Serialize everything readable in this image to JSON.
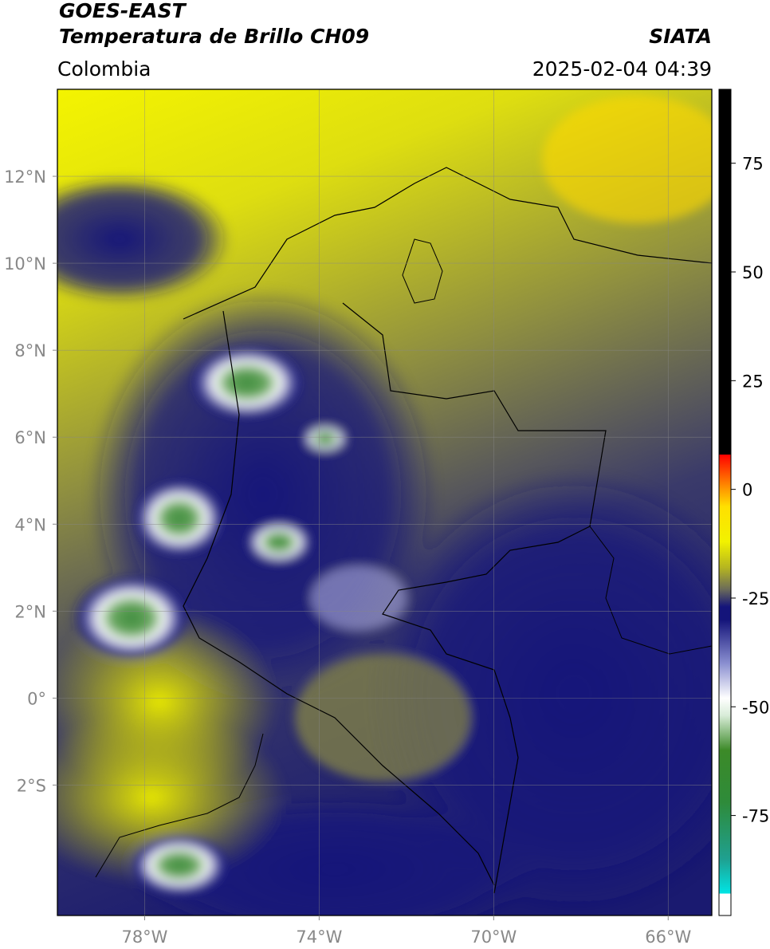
{
  "header": {
    "title": "GOES-EAST",
    "subtitle": "Temperatura de Brillo CH09",
    "source": "SIATA",
    "region": "Colombia",
    "datetime": "2025-02-04 04:39"
  },
  "map": {
    "xlim": [
      -80,
      -65
    ],
    "ylim": [
      -5,
      14
    ],
    "xticks": [
      {
        "value": -78,
        "label": "78°W"
      },
      {
        "value": -74,
        "label": "74°W"
      },
      {
        "value": -70,
        "label": "70°W"
      },
      {
        "value": -66,
        "label": "66°W"
      }
    ],
    "yticks": [
      {
        "value": 12,
        "label": "12°N"
      },
      {
        "value": 10,
        "label": "10°N"
      },
      {
        "value": 8,
        "label": "8°N"
      },
      {
        "value": 6,
        "label": "6°N"
      },
      {
        "value": 4,
        "label": "4°N"
      },
      {
        "value": 2,
        "label": "2°N"
      },
      {
        "value": 0,
        "label": "0°"
      },
      {
        "value": -2,
        "label": "2°S"
      }
    ],
    "grid": true
  },
  "colorbar": {
    "lim": [
      -98,
      92
    ],
    "ticks": [
      75,
      50,
      25,
      0,
      -25,
      -50,
      -75
    ],
    "colormap": [
      {
        "value": -98,
        "color": "#ffffff"
      },
      {
        "value": -93,
        "color": "#ffffff"
      },
      {
        "value": -93,
        "color": "#00e5e5"
      },
      {
        "value": -85,
        "color": "#1fa090"
      },
      {
        "value": -72,
        "color": "#2e8b3a"
      },
      {
        "value": -60,
        "color": "#3c8a28"
      },
      {
        "value": -52,
        "color": "#d8ecd8"
      },
      {
        "value": -48,
        "color": "#ffffff"
      },
      {
        "value": -40,
        "color": "#8a8fd0"
      },
      {
        "value": -30,
        "color": "#14147a"
      },
      {
        "value": -27,
        "color": "#14147a"
      },
      {
        "value": -23,
        "color": "#6b6b5a"
      },
      {
        "value": -18,
        "color": "#b5b520"
      },
      {
        "value": -12,
        "color": "#f2f200"
      },
      {
        "value": -4,
        "color": "#ffe000"
      },
      {
        "value": 0,
        "color": "#ff9a00"
      },
      {
        "value": 8,
        "color": "#ff0000"
      },
      {
        "value": 8,
        "color": "#000000"
      },
      {
        "value": 92,
        "color": "#000000"
      }
    ]
  }
}
